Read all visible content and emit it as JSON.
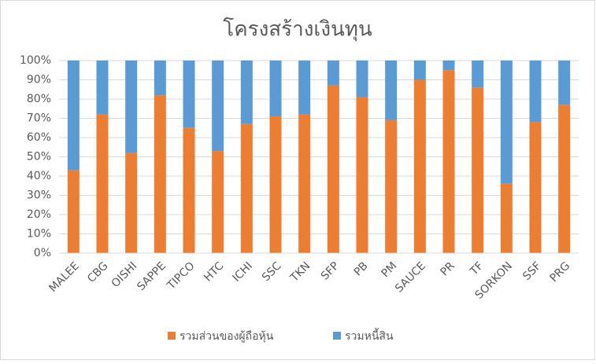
{
  "chart_data": {
    "type": "bar",
    "stacked": true,
    "title": "โครงสร้างเงินทุน",
    "categories": [
      "MALEE",
      "CBG",
      "OISHI",
      "SAPPE",
      "TIPCO",
      "HTC",
      "ICHI",
      "SSC",
      "TKN",
      "SFP",
      "PB",
      "PM",
      "SAUCE",
      "PR",
      "TF",
      "SORKON",
      "SSF",
      "PRG"
    ],
    "series": [
      {
        "name": "รวมส่วนของผู้ถือหุ้น",
        "color": "#ed7d31",
        "values": [
          43,
          72,
          52,
          82,
          65,
          53,
          67,
          71,
          72,
          87,
          81,
          69,
          90,
          95,
          86,
          36,
          68,
          77
        ]
      },
      {
        "name": "รวมหนี้สิน",
        "color": "#5b9bd5",
        "values": [
          57,
          28,
          48,
          18,
          35,
          47,
          33,
          29,
          28,
          13,
          19,
          31,
          10,
          5,
          14,
          64,
          32,
          23
        ]
      }
    ],
    "ylim": [
      0,
      100
    ],
    "yticks": [
      {
        "value": 0,
        "label": "0%"
      },
      {
        "value": 10,
        "label": "10%"
      },
      {
        "value": 20,
        "label": "20%"
      },
      {
        "value": 30,
        "label": "30%"
      },
      {
        "value": 40,
        "label": "40%"
      },
      {
        "value": 50,
        "label": "50%"
      },
      {
        "value": 60,
        "label": "60%"
      },
      {
        "value": 70,
        "label": "70%"
      },
      {
        "value": 80,
        "label": "80%"
      },
      {
        "value": 90,
        "label": "90%"
      },
      {
        "value": 100,
        "label": "100%"
      }
    ],
    "grid": true,
    "legend": "bottom"
  }
}
